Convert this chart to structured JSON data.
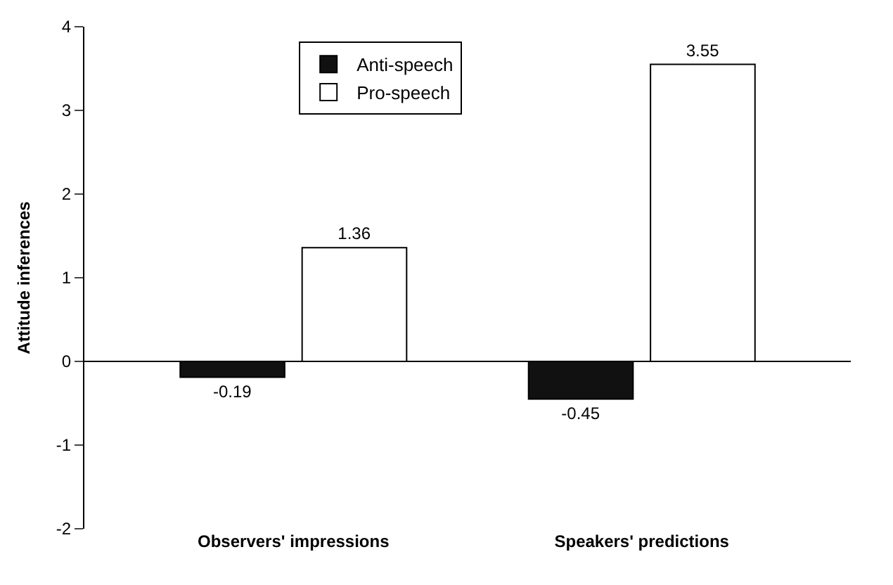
{
  "chart_data": {
    "type": "bar",
    "ylabel": "Attitude inferences",
    "categories": [
      "Observers' impressions",
      "Speakers' predictions"
    ],
    "series": [
      {
        "name": "Anti-speech",
        "color": "#111111",
        "values": [
          -0.19,
          -0.45
        ]
      },
      {
        "name": "Pro-speech",
        "color": "#ffffff",
        "values": [
          1.36,
          3.55
        ]
      }
    ],
    "ylim": [
      -2,
      4
    ],
    "yticks": [
      -2,
      -1,
      0,
      1,
      2,
      3,
      4
    ],
    "data_labels": true,
    "legend": "top left"
  }
}
